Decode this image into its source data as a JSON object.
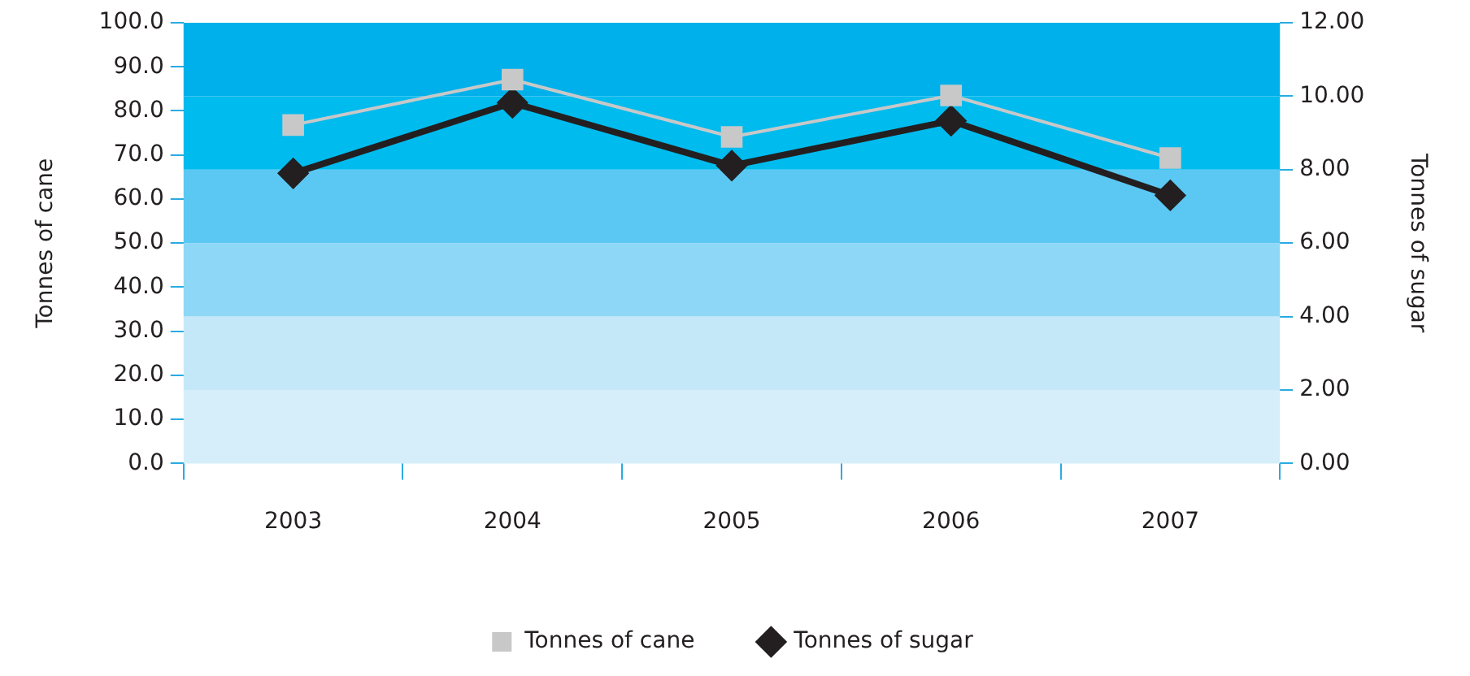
{
  "chart_data": {
    "type": "line",
    "xlabel": null,
    "ylabel": "Tonnes of cane",
    "y2label": "Tonnes of sugar",
    "categories": [
      "2003",
      "2004",
      "2005",
      "2006",
      "2007"
    ],
    "series": [
      {
        "name": "Tonnes of cane",
        "color": "#c8c8c8",
        "marker": "square",
        "values": [
          76.8,
          87.1,
          74.1,
          83.5,
          69.3
        ]
      },
      {
        "name": "Tonnes of sugar",
        "color": "#231f20",
        "marker": "diamond",
        "axis": "y2",
        "values": [
          7.9,
          9.82,
          8.11,
          9.33,
          7.3
        ]
      }
    ],
    "ylim": [
      0,
      100
    ],
    "yticks": [
      {
        "value": 0,
        "label": "0.0"
      },
      {
        "value": 10,
        "label": "10.0"
      },
      {
        "value": 20,
        "label": "20.0"
      },
      {
        "value": 30,
        "label": "30.0"
      },
      {
        "value": 40,
        "label": "40.0"
      },
      {
        "value": 50,
        "label": "50.0"
      },
      {
        "value": 60,
        "label": "60.0"
      },
      {
        "value": 70,
        "label": "70.0"
      },
      {
        "value": 80,
        "label": "80.0"
      },
      {
        "value": 90,
        "label": "90.0"
      },
      {
        "value": 100,
        "label": "100.0"
      }
    ],
    "y2lim": [
      0,
      12
    ],
    "y2ticks": [
      {
        "value": 0,
        "label": "0.00"
      },
      {
        "value": 2,
        "label": "2.00"
      },
      {
        "value": 4,
        "label": "4.00"
      },
      {
        "value": 6,
        "label": "6.00"
      },
      {
        "value": 8,
        "label": "8.00"
      },
      {
        "value": 10,
        "label": "10.00"
      },
      {
        "value": 12,
        "label": "12.00"
      }
    ],
    "bands": [
      {
        "axis": "y2",
        "from": 0,
        "to": 2,
        "color": "#d5eefa"
      },
      {
        "axis": "y2",
        "from": 2,
        "to": 4,
        "color": "#c5e8f8"
      },
      {
        "axis": "y2",
        "from": 4,
        "to": 6,
        "color": "#8fd7f6"
      },
      {
        "axis": "y2",
        "from": 6,
        "to": 8,
        "color": "#5bc8f3"
      },
      {
        "axis": "y2",
        "from": 8,
        "to": 10,
        "color": "#00bbee"
      },
      {
        "axis": "y2",
        "from": 10,
        "to": 12,
        "color": "#00b0ea"
      }
    ],
    "grid": false,
    "legend": "bottom",
    "line_style": "solid"
  }
}
